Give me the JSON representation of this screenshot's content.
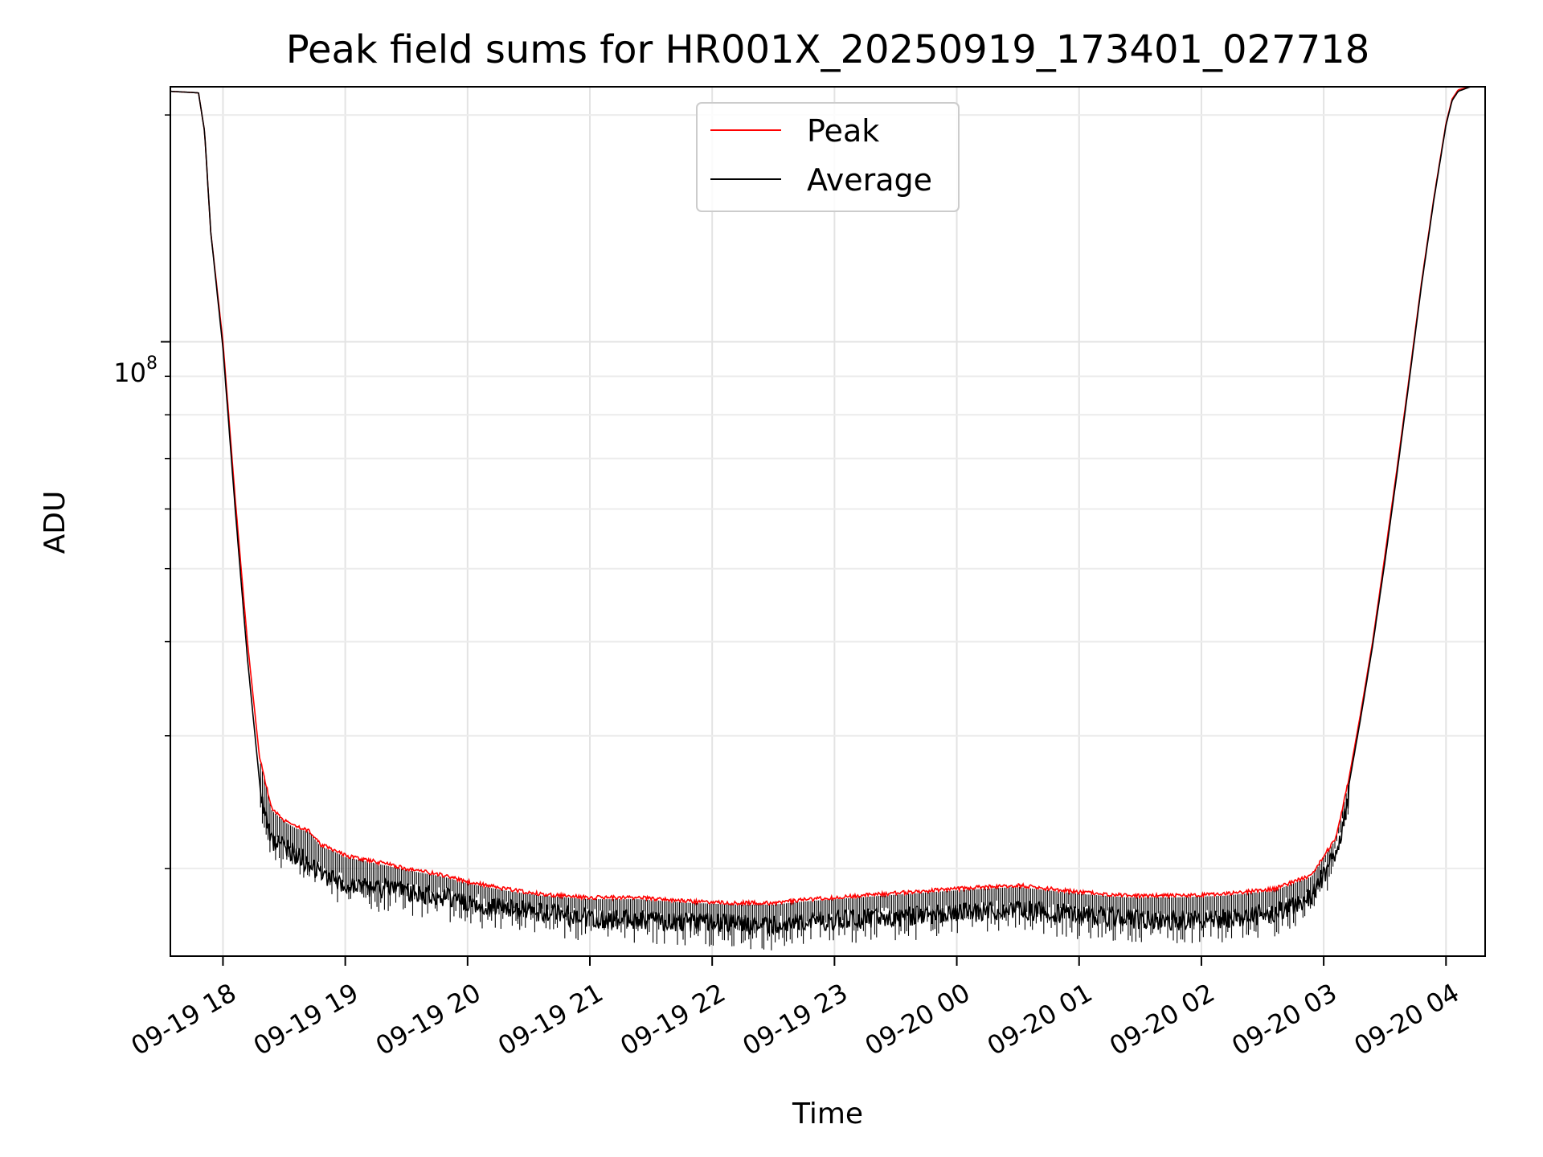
{
  "chart_data": {
    "type": "line",
    "title": "Peak field sums for HR001X_20250919_173401_027718",
    "xlabel": "Time",
    "ylabel": "ADU",
    "y_scale": "log",
    "y_major_tick_label": {
      "base": "10",
      "exp": "8"
    },
    "ylim": [
      15300000,
      218000000
    ],
    "xlim_hours_since_09-19_17:00": [
      0.57,
      11.32
    ],
    "x_tick_hours": [
      1,
      2,
      3,
      4,
      5,
      6,
      7,
      8,
      9,
      10,
      11
    ],
    "x_tick_labels": [
      "09-19 18",
      "09-19 19",
      "09-19 20",
      "09-19 21",
      "09-19 22",
      "09-19 23",
      "09-20 00",
      "09-20 01",
      "09-20 02",
      "09-20 03",
      "09-20 04"
    ],
    "y_minor_ticks": [
      20000000,
      30000000,
      40000000,
      50000000,
      60000000,
      70000000,
      80000000,
      90000000,
      200000000
    ],
    "grid": true,
    "legend_position": "upper center",
    "series": [
      {
        "name": "Peak",
        "color": "#ff0000",
        "x_hours": [
          0.57,
          0.8,
          0.85,
          0.9,
          1.0,
          1.1,
          1.2,
          1.3,
          1.4,
          1.5,
          1.6,
          1.7,
          1.8,
          1.9,
          2.0,
          2.2,
          2.5,
          2.8,
          3.0,
          3.3,
          3.6,
          4.0,
          4.4,
          4.8,
          5.2,
          5.5,
          5.8,
          6.2,
          6.6,
          7.0,
          7.5,
          8.0,
          8.4,
          8.8,
          9.2,
          9.6,
          9.9,
          10.1,
          10.2,
          10.3,
          10.4,
          10.5,
          10.6,
          10.7,
          10.8,
          10.9,
          11.0,
          11.05,
          11.1,
          11.2,
          11.32
        ],
        "values": [
          215000000,
          214000000,
          190000000,
          140000000,
          100000000,
          62000000,
          40000000,
          28000000,
          24000000,
          23200000,
          22700000,
          22500000,
          21500000,
          21200000,
          20800000,
          20500000,
          20000000,
          19600000,
          19200000,
          18800000,
          18500000,
          18300000,
          18300000,
          18100000,
          18000000,
          18000000,
          18200000,
          18400000,
          18600000,
          18800000,
          19000000,
          18600000,
          18400000,
          18400000,
          18500000,
          18800000,
          19600000,
          22000000,
          26000000,
          32000000,
          40000000,
          52000000,
          68000000,
          90000000,
          120000000,
          155000000,
          195000000,
          210000000,
          216000000,
          218000000,
          218000000
        ]
      },
      {
        "name": "Average",
        "color": "#000000",
        "x_hours": [
          0.57,
          0.8,
          0.85,
          0.9,
          1.0,
          1.1,
          1.2,
          1.3,
          1.4,
          1.5,
          1.6,
          1.7,
          1.8,
          1.9,
          2.0,
          2.2,
          2.5,
          2.8,
          3.0,
          3.3,
          3.6,
          4.0,
          4.4,
          4.8,
          5.2,
          5.5,
          5.8,
          6.2,
          6.6,
          7.0,
          7.5,
          8.0,
          8.4,
          8.8,
          9.2,
          9.6,
          9.9,
          10.1,
          10.2,
          10.3,
          10.4,
          10.5,
          10.6,
          10.7,
          10.8,
          10.9,
          11.0,
          11.05,
          11.1,
          11.2,
          11.32
        ],
        "values": [
          215000000,
          214000000,
          190000000,
          140000000,
          98000000,
          60000000,
          38000000,
          26000000,
          22500000,
          22000000,
          21500000,
          21000000,
          20300000,
          20000000,
          19700000,
          19500000,
          19200000,
          18900000,
          18600000,
          18300000,
          18000000,
          17700000,
          17600000,
          17500000,
          17400000,
          17300000,
          17500000,
          17700000,
          17800000,
          18000000,
          18200000,
          17900000,
          17700000,
          17600000,
          17700000,
          18000000,
          19000000,
          21500000,
          25500000,
          31500000,
          39500000,
          51000000,
          67000000,
          89000000,
          119000000,
          154000000,
          194000000,
          209000000,
          215000000,
          218000000,
          218000000
        ]
      }
    ]
  }
}
